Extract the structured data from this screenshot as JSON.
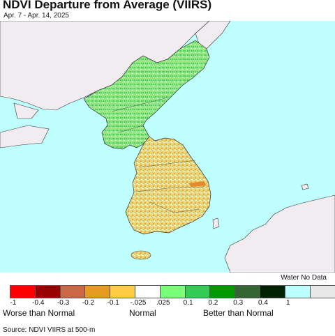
{
  "header": {
    "title": "NDVI Departure from Average (VIIRS)",
    "date_range": "Apr. 7 - Apr. 14, 2025"
  },
  "map": {
    "region": "Korean Peninsula",
    "water_color": "#bffffe",
    "foreign_land_color": "#f0ecf0",
    "north_land_color": "#7ee07a",
    "south_land_color": "#e6cf6e"
  },
  "legend": {
    "no_data_label": "Water No Data",
    "swatches": [
      "#ff0000",
      "#990000",
      "#cc6644",
      "#e69a20",
      "#ffcc44",
      "#ffffff",
      "#77ff77",
      "#33cc55",
      "#009900",
      "#336633",
      "#002200",
      "#bbffff",
      "#e8e8e8"
    ],
    "ticks": [
      "-1",
      "-0.4",
      "-0.3",
      "-0.2",
      "-0.1",
      "-.025",
      ".025",
      "0.1",
      "0.2",
      "0.3",
      "0.4",
      "1"
    ],
    "worse_label": "Worse than Normal",
    "normal_label": "Normal",
    "better_label": "Better than Normal"
  },
  "footer": {
    "source": "Source: NDVI VIIRS at 500-m"
  }
}
